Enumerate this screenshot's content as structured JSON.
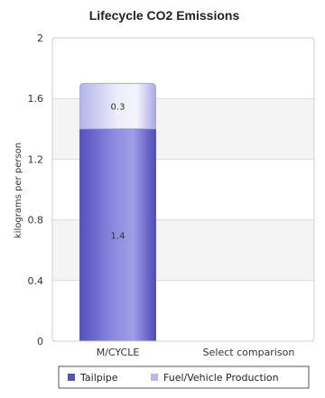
{
  "chart_data": {
    "type": "bar",
    "stacked": true,
    "title": "Lifecycle CO2 Emissions",
    "xlabel": "",
    "ylabel": "kilograms per person",
    "ylim": [
      0,
      2
    ],
    "yticks": [
      0,
      0.4,
      0.8,
      1.2,
      1.6,
      2
    ],
    "tick_labels": [
      "0",
      "0.4",
      "0.8",
      "1.2",
      "1.6",
      "2"
    ],
    "categories": [
      "M/CYCLE",
      "Select comparison"
    ],
    "series": [
      {
        "name": "Tailpipe",
        "values": [
          1.4,
          null
        ],
        "data_labels": [
          "1.4",
          ""
        ],
        "color": "#7b7ad6"
      },
      {
        "name": "Fuel/Vehicle Production",
        "values": [
          0.3,
          null
        ],
        "data_labels": [
          "0.3",
          ""
        ],
        "color": "#c9c9f2"
      }
    ],
    "legend_position": "bottom",
    "grid": "alternating horizontal bands"
  }
}
